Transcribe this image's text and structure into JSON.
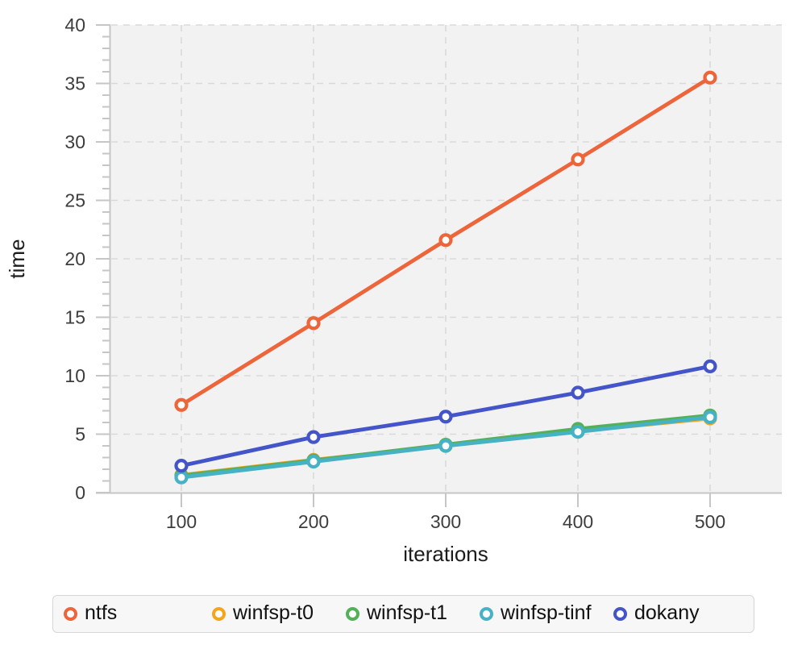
{
  "chart_data": {
    "type": "line",
    "title": "",
    "xlabel": "iterations",
    "ylabel": "time",
    "x": [
      100,
      200,
      300,
      400,
      500
    ],
    "xticks": [
      100,
      200,
      300,
      400,
      500
    ],
    "yticks": [
      0,
      5,
      10,
      15,
      20,
      25,
      30,
      35,
      40
    ],
    "y_minor_tick_step": 1,
    "xlim": [
      46,
      554
    ],
    "ylim": [
      0,
      40
    ],
    "grid": "dashed",
    "legend_position": "bottom",
    "plot_bg": "#F2F2F2",
    "grid_color": "#D9D9D9",
    "axis_color": "#C6C6C6",
    "series": [
      {
        "name": "ntfs",
        "color": "#ED653A",
        "values": [
          7.5,
          14.5,
          21.6,
          28.5,
          35.5
        ]
      },
      {
        "name": "winfsp-t0",
        "color": "#F4A51C",
        "values": [
          1.5,
          2.8,
          4.0,
          5.25,
          6.35
        ]
      },
      {
        "name": "winfsp-t1",
        "color": "#55B05A",
        "values": [
          1.45,
          2.75,
          4.1,
          5.45,
          6.6
        ]
      },
      {
        "name": "winfsp-tinf",
        "color": "#47B2C6",
        "values": [
          1.3,
          2.65,
          4.0,
          5.2,
          6.45
        ]
      },
      {
        "name": "dokany",
        "color": "#4355C9",
        "values": [
          2.3,
          4.75,
          6.5,
          8.55,
          10.8
        ]
      }
    ],
    "marker": "open-circle"
  }
}
